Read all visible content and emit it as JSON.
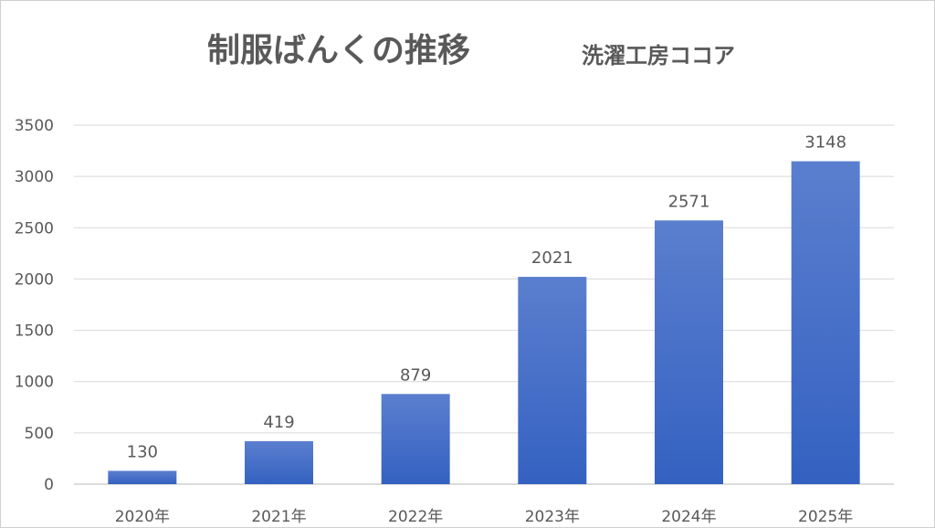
{
  "chart_data": {
    "type": "bar",
    "title": "制服ばんくの推移",
    "subtitle": "洗濯工房ココア",
    "categories": [
      "2020年",
      "2021年",
      "2022年",
      "2023年",
      "2024年",
      "2025年"
    ],
    "values": [
      130,
      419,
      879,
      2021,
      2571,
      3148
    ],
    "data_labels": [
      "130",
      "419",
      "879",
      "2021",
      "2571",
      "3148"
    ],
    "xlabel": "",
    "ylabel": "",
    "ylim": [
      0,
      3500
    ],
    "yticks": [
      "0",
      "500",
      "1000",
      "1500",
      "2000",
      "2500",
      "3000",
      "3500"
    ],
    "grid": true,
    "legend": "none",
    "bar_color_top": "#5b7fcf",
    "bar_color_bottom": "#3461c1"
  }
}
